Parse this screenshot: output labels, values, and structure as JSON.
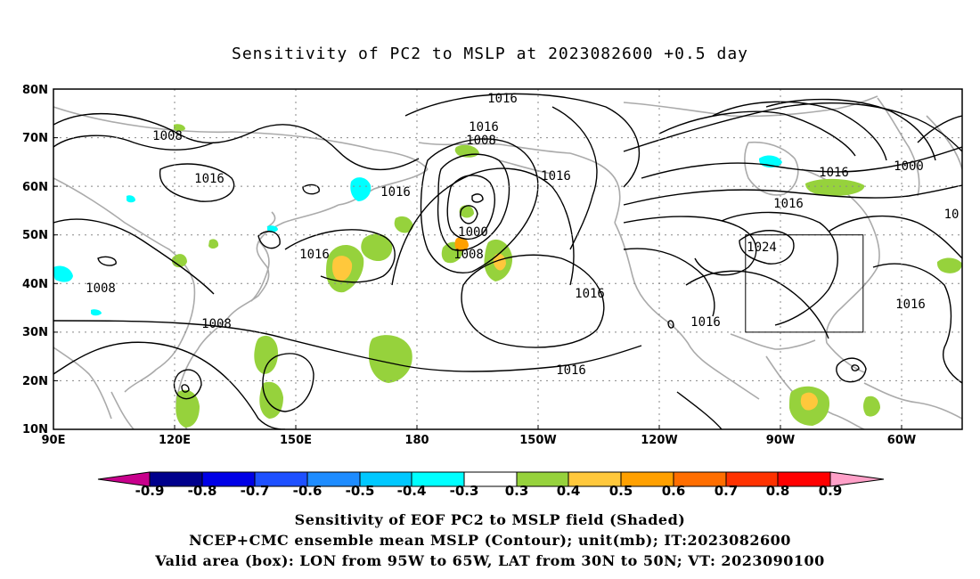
{
  "title": "Sensitivity of PC2 to MSLP at 2023082600 +0.5 day",
  "lat_ticks": [
    "80N",
    "70N",
    "60N",
    "50N",
    "40N",
    "30N",
    "20N",
    "10N"
  ],
  "lon_ticks": [
    "90E",
    "120E",
    "150E",
    "180",
    "150W",
    "120W",
    "90W",
    "60W"
  ],
  "contour_labels": [
    "1016",
    "1008",
    "1016",
    "1008",
    "1016",
    "1016",
    "1016",
    "1000",
    "1008",
    "1016",
    "1016",
    "1008",
    "1008",
    "1016",
    "1016",
    "1000",
    "1016",
    "1024",
    "1016",
    "1016",
    "10"
  ],
  "colorbar": {
    "labels": [
      "-0.9",
      "-0.8",
      "-0.7",
      "-0.6",
      "-0.5",
      "-0.4",
      "-0.3",
      "0.3",
      "0.4",
      "0.5",
      "0.6",
      "0.7",
      "0.8",
      "0.9"
    ],
    "colors": [
      "#00008c",
      "#0000e6",
      "#1e50ff",
      "#1e8cff",
      "#00c8ff",
      "#00ffff",
      "#ffffff",
      "#96d23c",
      "#ffc83c",
      "#ffa000",
      "#ff6e00",
      "#ff3200",
      "#ff0000"
    ],
    "low_end_color": "#c8008c",
    "high_end_color": "#ffa0c8"
  },
  "valid_area": {
    "lon": "95W to 65W",
    "lat": "30N to 50N"
  },
  "caption": {
    "line1": "Sensitivity of EOF PC2 to MSLP field (Shaded)",
    "line2": "NCEP+CMC ensemble mean MSLP (Contour); unit(mb); IT:2023082600",
    "line3": "Valid area (box): LON from 95W to 65W, LAT from 30N to 50N; VT: 2023090100"
  }
}
